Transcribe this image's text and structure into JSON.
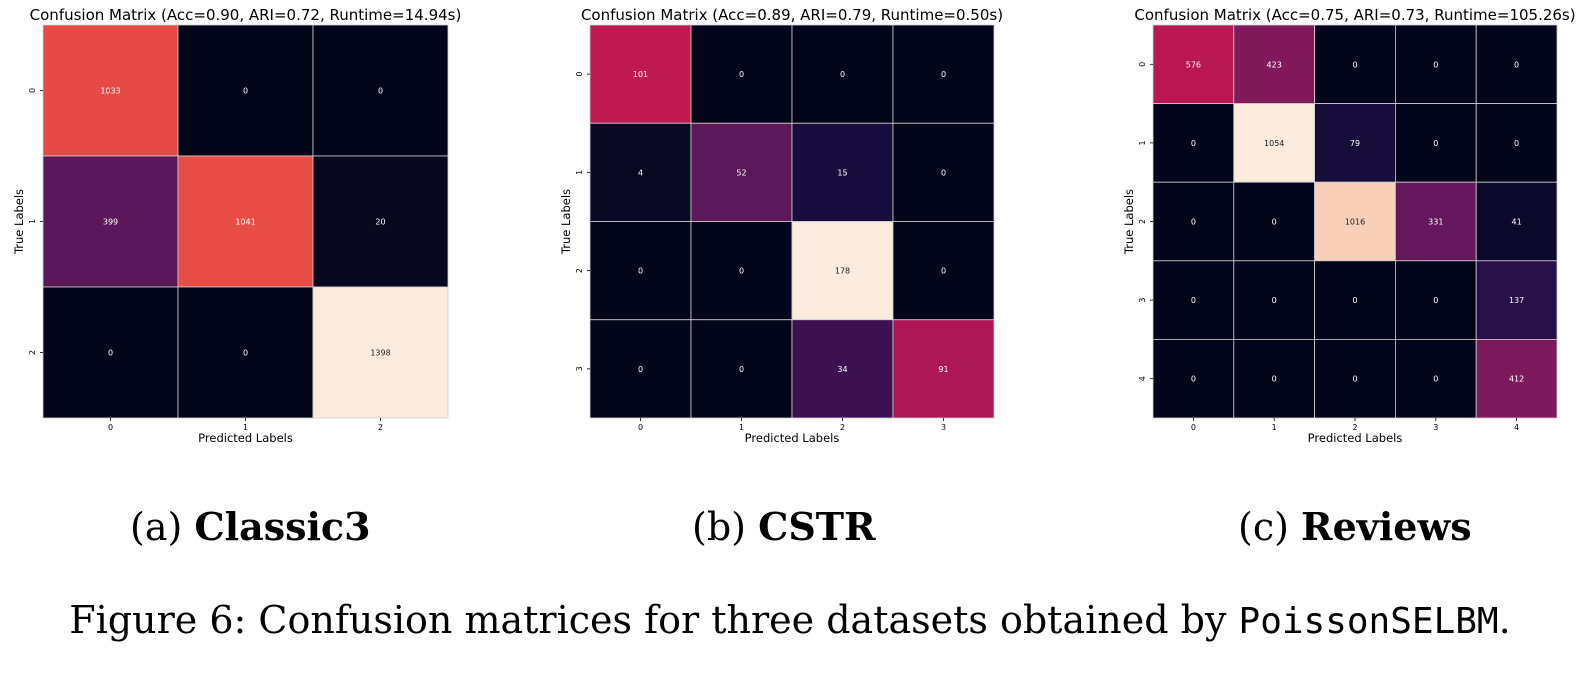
{
  "chart_data": [
    {
      "type": "heatmap",
      "title": "Confusion Matrix (Acc=0.90, ARI=0.72, Runtime=14.94s)",
      "xlabel": "Predicted Labels",
      "ylabel": "True Labels",
      "x_ticks": [
        "0",
        "1",
        "2"
      ],
      "y_ticks": [
        "0",
        "1",
        "2"
      ],
      "values": [
        [
          1033,
          0,
          0
        ],
        [
          399,
          1041,
          20
        ],
        [
          0,
          0,
          1398
        ]
      ],
      "colormap": "rocket",
      "grid": true
    },
    {
      "type": "heatmap",
      "title": "Confusion Matrix (Acc=0.89, ARI=0.79, Runtime=0.50s)",
      "xlabel": "Predicted Labels",
      "ylabel": "True Labels",
      "x_ticks": [
        "0",
        "1",
        "2",
        "3"
      ],
      "y_ticks": [
        "0",
        "1",
        "2",
        "3"
      ],
      "values": [
        [
          101,
          0,
          0,
          0
        ],
        [
          4,
          52,
          15,
          0
        ],
        [
          0,
          0,
          178,
          0
        ],
        [
          0,
          0,
          34,
          91
        ]
      ],
      "colormap": "rocket",
      "grid": true
    },
    {
      "type": "heatmap",
      "title": "Confusion Matrix (Acc=0.75, ARI=0.73, Runtime=105.26s)",
      "xlabel": "Predicted Labels",
      "ylabel": "True Labels",
      "x_ticks": [
        "0",
        "1",
        "2",
        "3",
        "4"
      ],
      "y_ticks": [
        "0",
        "1",
        "2",
        "3",
        "4"
      ],
      "values": [
        [
          576,
          423,
          0,
          0,
          0
        ],
        [
          0,
          1054,
          79,
          0,
          0
        ],
        [
          0,
          0,
          1016,
          331,
          41
        ],
        [
          0,
          0,
          0,
          0,
          137
        ],
        [
          0,
          0,
          0,
          0,
          412
        ]
      ],
      "colormap": "rocket",
      "grid": true
    }
  ],
  "captions": [
    {
      "prefix": "(a)",
      "name": "Classic3"
    },
    {
      "prefix": "(b)",
      "name": "CSTR"
    },
    {
      "prefix": "(c)",
      "name": "Reviews"
    }
  ],
  "figure_caption": {
    "text": "Figure 6: Confusion matrices for three datasets obtained by",
    "code": "PoissonSELBM",
    "end": "."
  }
}
